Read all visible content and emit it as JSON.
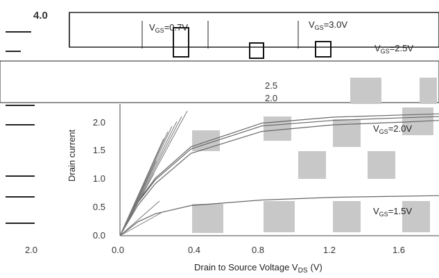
{
  "chart_data": {
    "type": "line",
    "title": "",
    "top_value": "4.0",
    "xlabel": "Drain to Source Voltage V",
    "xlabel_sub": "DS",
    "xlabel_unit": "(V)",
    "ylabel": "Drain current",
    "x_ticks": [
      "2.0",
      "0.0",
      "0.4",
      "0.8",
      "1.2",
      "1.6"
    ],
    "y_ticks": [
      "0.0",
      "0.5",
      "1.0",
      "1.5",
      "2.0"
    ],
    "xlim": [
      0.0,
      1.8
    ],
    "ylim": [
      0.0,
      2.4
    ],
    "inset_ticks": [
      "2.5",
      "2.0"
    ],
    "series": [
      {
        "name": "V",
        "name_sub": "GS",
        "name_value": "=3.0V",
        "x": [
          0.0,
          0.1,
          0.2,
          0.4,
          0.8,
          1.2,
          1.6,
          1.8
        ],
        "y": [
          0.0,
          0.62,
          1.05,
          1.62,
          2.05,
          2.16,
          2.2,
          2.22
        ]
      },
      {
        "name": "V",
        "name_sub": "GS",
        "name_value": "=2.5V",
        "x": [
          0.0,
          0.1,
          0.2,
          0.4,
          0.8,
          1.2,
          1.6,
          1.8
        ],
        "y": [
          0.0,
          0.6,
          1.02,
          1.58,
          2.0,
          2.1,
          2.15,
          2.17
        ]
      },
      {
        "name": "V",
        "name_sub": "GS",
        "name_value": "=2.0V",
        "x": [
          0.0,
          0.1,
          0.2,
          0.4,
          0.8,
          1.2,
          1.6,
          1.8
        ],
        "y": [
          0.0,
          0.55,
          0.95,
          1.5,
          1.9,
          2.02,
          2.07,
          2.1
        ]
      },
      {
        "name": "V",
        "name_sub": "GS",
        "name_value": "=1.5V",
        "x": [
          0.0,
          0.1,
          0.2,
          0.4,
          0.8,
          1.2,
          1.6,
          1.8
        ],
        "y": [
          0.0,
          0.25,
          0.4,
          0.55,
          0.65,
          0.7,
          0.72,
          0.73
        ]
      }
    ],
    "top_labels": [
      {
        "name": "V",
        "name_sub": "GS",
        "name_value": "=0.7V"
      },
      {
        "name": "V",
        "name_sub": "GS",
        "name_value": "=3.0V"
      },
      {
        "name": "V",
        "name_sub": "GS",
        "name_value": "=2.5V"
      }
    ],
    "grid": true,
    "legend": "right"
  }
}
